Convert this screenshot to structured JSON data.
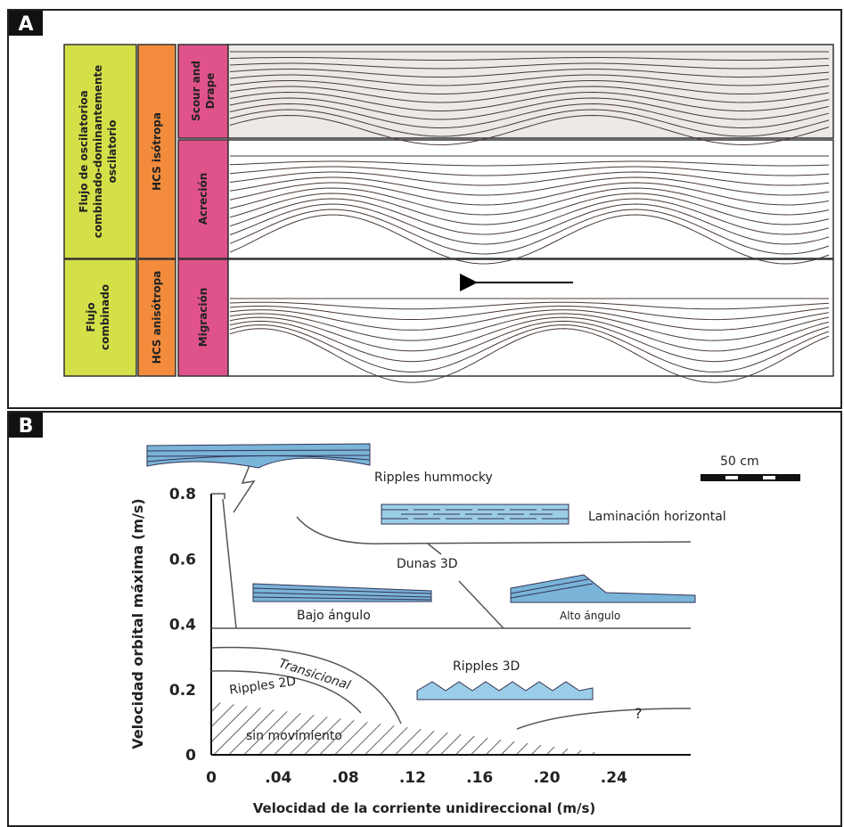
{
  "panel_a": {
    "label": "A",
    "flow": [
      [
        "Flujo de oscilatorioa",
        "combinado-dominantemente",
        "oscilatorio"
      ],
      [
        "Flujo",
        "combinado"
      ]
    ],
    "hcs": [
      "HCS isótropa",
      "HCS anisótropa"
    ],
    "process": [
      [
        "Scour and",
        "Drape"
      ],
      [
        "Acreción"
      ],
      [
        "Migración"
      ]
    ]
  },
  "panel_b": {
    "label": "B",
    "y_axis_title": "Velocidad orbital máxima (m/s)",
    "x_axis_title": "Velocidad de la corriente unidireccional (m/s)",
    "x_ticks": [
      "0",
      ".04",
      ".08",
      ".12",
      ".16",
      ".20",
      ".24"
    ],
    "y_ticks": [
      "0",
      "0.2",
      "0.4",
      "0.6",
      "0.8"
    ],
    "scale_bar": "50 cm",
    "regions": [
      "Ripples hummocky",
      "Laminación horizontal",
      "Dunas 3D",
      "Bajo ángulo",
      "Alto ángulo",
      "Transicional",
      "Ripples 3D",
      "Ripples 2D",
      "sin movimiento",
      "?"
    ]
  }
}
